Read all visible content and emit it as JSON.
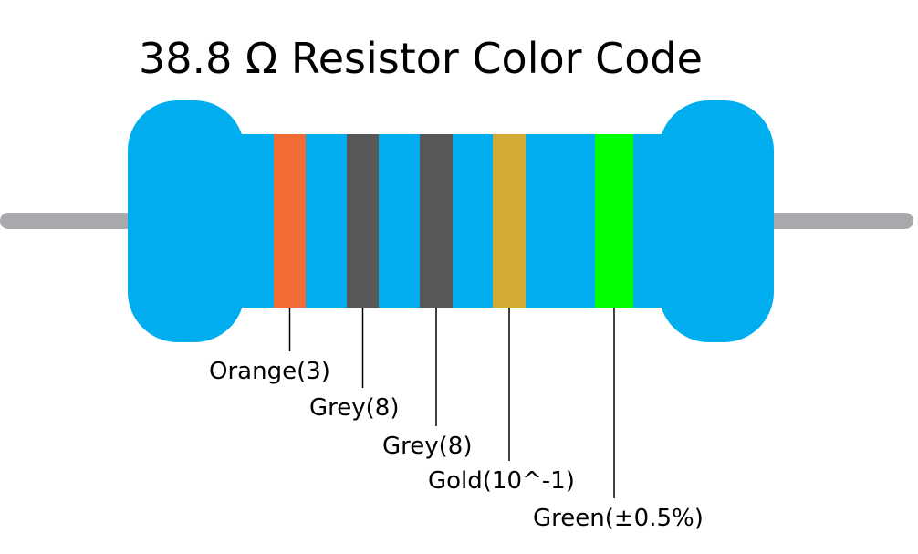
{
  "title": "38.8 Ω Resistor Color Code",
  "bands": [
    {
      "label": "Orange(3)",
      "color": "#f26b35"
    },
    {
      "label": "Grey(8)",
      "color": "#58585a"
    },
    {
      "label": "Grey(8)",
      "color": "#58585a"
    },
    {
      "label": "Gold(10^-1)",
      "color": "#d2ab37"
    },
    {
      "label": "Green(±0.5%)",
      "color": "#00ff00"
    }
  ]
}
